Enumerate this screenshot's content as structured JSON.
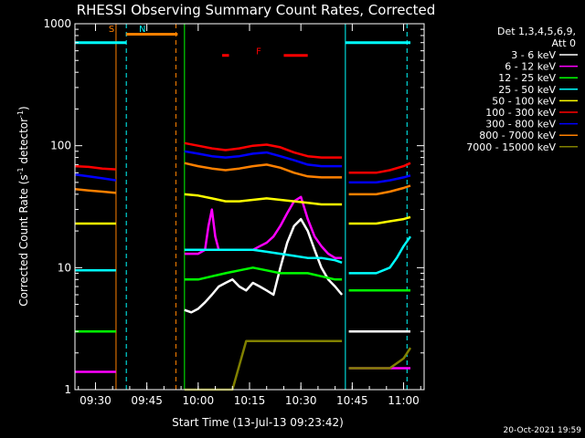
{
  "chart_data": {
    "type": "line",
    "title": "RHESSI Observing Summary Count Rates, Corrected",
    "xlabel": "Start Time (13-Jul-13 09:23:42)",
    "ylabel_main": "Corrected Count Rate (s",
    "ylabel_sup1": "-1",
    "ylabel_mid": " detector",
    "ylabel_sup2": "-1",
    "ylabel_end": ")",
    "yscale": "log",
    "ylim": [
      1,
      1000
    ],
    "xlim_minutes": [
      -6,
      96
    ],
    "x_tick_labels": [
      "09:30",
      "09:45",
      "10:00",
      "10:15",
      "10:30",
      "10:45",
      "11:00"
    ],
    "x_ticks_minutes": [
      0,
      15,
      30,
      45,
      60,
      75,
      90
    ],
    "y_tick_labels": [
      "1",
      "10",
      "100",
      "1000"
    ],
    "y_ticks": [
      1,
      10,
      100,
      1000
    ],
    "legend_header": [
      "Det 1,3,4,5,6,9,",
      "Att 0"
    ],
    "legend_position": "right",
    "footer": "20-Oct-2021 19:59",
    "flags": [
      {
        "label": "S",
        "color": "#ff8000",
        "start": -6,
        "end": 3
      },
      {
        "label": "N",
        "color": "#00ffff",
        "start": 3,
        "end": 15
      },
      {
        "label": "F",
        "color": "#ff0000",
        "start": 37,
        "end": 39
      }
    ],
    "flag_bars": [
      {
        "color": "#00ffff",
        "start": -6,
        "end": 9,
        "y": 700
      },
      {
        "color": "#ff8000",
        "start": 9,
        "end": 24,
        "y": 820
      },
      {
        "color": "#ff0000",
        "start": 37,
        "end": 39,
        "y": 550
      },
      {
        "color": "#ff0000",
        "start": 55,
        "end": 62,
        "y": 550
      },
      {
        "color": "#00ffff",
        "start": 73,
        "end": 92,
        "y": 700
      }
    ],
    "vertical_lines": [
      {
        "x": -6,
        "color": "#00ffff",
        "style": "solid"
      },
      {
        "x": 6,
        "color": "#ff8000",
        "style": "solid"
      },
      {
        "x": 9,
        "color": "#00ffff",
        "style": "dashed"
      },
      {
        "x": 23.5,
        "color": "#ff8000",
        "style": "dashed"
      },
      {
        "x": 26,
        "color": "#00ff00",
        "style": "solid"
      },
      {
        "x": 73,
        "color": "#00ffff",
        "style": "solid"
      },
      {
        "x": 91,
        "color": "#00ffff",
        "style": "dashed"
      }
    ],
    "series": [
      {
        "name": "3 - 6 keV",
        "color": "#ffffff",
        "segments": [
          {
            "x": [
              26,
              28,
              30,
              32,
              34,
              36,
              38,
              40,
              42,
              44,
              46,
              48,
              50,
              52,
              54,
              56,
              58,
              60,
              62,
              64,
              66,
              68,
              70,
              72
            ],
            "y": [
              4.5,
              4.3,
              4.6,
              5.2,
              6.0,
              7.0,
              7.5,
              8.0,
              7.0,
              6.5,
              7.5,
              7.0,
              6.5,
              6.0,
              10,
              16,
              22,
              25,
              20,
              14,
              10,
              8,
              7,
              6
            ]
          },
          {
            "x": [
              74,
              76,
              78,
              80,
              82,
              84,
              86,
              88,
              90,
              92
            ],
            "y": [
              3.0,
              3.0,
              3.0,
              3.0,
              3.0,
              3.0,
              3.0,
              3.0,
              3.0,
              3.0
            ]
          }
        ]
      },
      {
        "name": "6 - 12 keV",
        "color": "#ff00ff",
        "segments": [
          {
            "x": [
              -6,
              -2,
              2,
              6
            ],
            "y": [
              1.4,
              1.4,
              1.4,
              1.4
            ]
          },
          {
            "x": [
              26,
              28,
              30,
              32,
              33,
              34,
              35,
              36,
              38,
              40,
              42,
              44,
              46,
              48,
              50,
              52,
              54,
              56,
              58,
              60,
              62,
              64,
              66,
              68,
              70,
              72
            ],
            "y": [
              13,
              13,
              13,
              14,
              22,
              30,
              18,
              14,
              14,
              14,
              14,
              14,
              14,
              15,
              16,
              18,
              22,
              28,
              35,
              38,
              25,
              18,
              15,
              13,
              12,
              12
            ]
          },
          {
            "x": [
              74,
              78,
              82,
              86,
              90,
              92
            ],
            "y": [
              1.5,
              1.5,
              1.5,
              1.5,
              1.5,
              1.5
            ]
          }
        ]
      },
      {
        "name": "12 - 25 keV",
        "color": "#00ff00",
        "segments": [
          {
            "x": [
              -6,
              -2,
              2,
              6
            ],
            "y": [
              3.0,
              3.0,
              3.0,
              3.0
            ]
          },
          {
            "x": [
              26,
              30,
              34,
              38,
              42,
              46,
              50,
              54,
              58,
              62,
              66,
              70,
              72
            ],
            "y": [
              8,
              8,
              8.5,
              9,
              9.5,
              10,
              9.5,
              9,
              9,
              9,
              8.5,
              8,
              8
            ]
          },
          {
            "x": [
              74,
              78,
              82,
              86,
              90,
              92
            ],
            "y": [
              6.5,
              6.5,
              6.5,
              6.5,
              6.5,
              6.5
            ]
          }
        ]
      },
      {
        "name": "25 - 50 keV",
        "color": "#00ffff",
        "segments": [
          {
            "x": [
              -6,
              -2,
              2,
              6
            ],
            "y": [
              9.5,
              9.5,
              9.5,
              9.5
            ]
          },
          {
            "x": [
              26,
              30,
              34,
              38,
              42,
              46,
              50,
              54,
              58,
              62,
              66,
              70,
              72
            ],
            "y": [
              14,
              14,
              14,
              14,
              14,
              14,
              13.5,
              13,
              12.5,
              12,
              12,
              11.5,
              11
            ]
          },
          {
            "x": [
              74,
              78,
              82,
              86,
              88,
              90,
              92
            ],
            "y": [
              9,
              9,
              9,
              10,
              12,
              15,
              18
            ]
          }
        ]
      },
      {
        "name": "50 - 100 keV",
        "color": "#ffff00",
        "segments": [
          {
            "x": [
              -6,
              -2,
              2,
              6
            ],
            "y": [
              23,
              23,
              23,
              23
            ]
          },
          {
            "x": [
              26,
              30,
              34,
              38,
              42,
              46,
              50,
              54,
              58,
              62,
              66,
              70,
              72
            ],
            "y": [
              40,
              39,
              37,
              35,
              35,
              36,
              37,
              36,
              35,
              34,
              33,
              33,
              33
            ]
          },
          {
            "x": [
              74,
              78,
              82,
              86,
              90,
              92
            ],
            "y": [
              23,
              23,
              23,
              24,
              25,
              26
            ]
          }
        ]
      },
      {
        "name": "100 - 300 keV",
        "color": "#ff0000",
        "segments": [
          {
            "x": [
              -6,
              -2,
              2,
              6
            ],
            "y": [
              68,
              67,
              65,
              64
            ]
          },
          {
            "x": [
              26,
              30,
              34,
              38,
              42,
              46,
              50,
              54,
              58,
              62,
              66,
              70,
              72
            ],
            "y": [
              105,
              100,
              95,
              92,
              95,
              100,
              102,
              97,
              88,
              82,
              80,
              80,
              80
            ]
          },
          {
            "x": [
              74,
              78,
              82,
              86,
              90,
              92
            ],
            "y": [
              60,
              60,
              60,
              63,
              68,
              72
            ]
          }
        ]
      },
      {
        "name": "300 - 800 keV",
        "color": "#0000ff",
        "segments": [
          {
            "x": [
              -6,
              -2,
              2,
              6
            ],
            "y": [
              58,
              56,
              54,
              52
            ]
          },
          {
            "x": [
              26,
              30,
              34,
              38,
              42,
              46,
              50,
              54,
              58,
              62,
              66,
              70,
              72
            ],
            "y": [
              90,
              86,
              82,
              80,
              82,
              86,
              88,
              82,
              76,
              70,
              68,
              68,
              68
            ]
          },
          {
            "x": [
              74,
              78,
              82,
              86,
              90,
              92
            ],
            "y": [
              50,
              50,
              50,
              52,
              55,
              57
            ]
          }
        ]
      },
      {
        "name": "800 - 7000 keV",
        "color": "#ff8000",
        "segments": [
          {
            "x": [
              -6,
              -2,
              2,
              6
            ],
            "y": [
              44,
              43,
              42,
              41
            ]
          },
          {
            "x": [
              26,
              30,
              34,
              38,
              42,
              46,
              50,
              54,
              58,
              62,
              66,
              70,
              72
            ],
            "y": [
              72,
              68,
              65,
              63,
              65,
              68,
              70,
              66,
              60,
              56,
              55,
              55,
              55
            ]
          },
          {
            "x": [
              74,
              78,
              82,
              86,
              90,
              92
            ],
            "y": [
              40,
              40,
              40,
              42,
              45,
              47
            ]
          }
        ]
      },
      {
        "name": "7000 - 15000 keV",
        "color": "#808000",
        "segments": [
          {
            "x": [
              26,
              40,
              44,
              48,
              52,
              56,
              60,
              64,
              68,
              72
            ],
            "y": [
              1,
              1,
              2.5,
              2.5,
              2.5,
              2.5,
              2.5,
              2.5,
              2.5,
              2.5
            ]
          },
          {
            "x": [
              74,
              80,
              86,
              90,
              92
            ],
            "y": [
              1.5,
              1.5,
              1.5,
              1.8,
              2.2
            ]
          }
        ]
      }
    ]
  }
}
